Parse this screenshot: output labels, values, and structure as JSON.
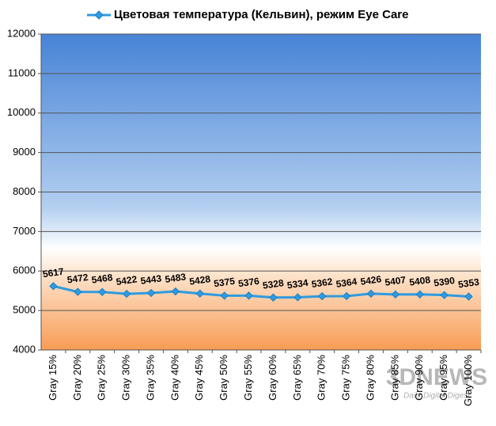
{
  "chart_data": {
    "type": "line",
    "categories": [
      "Gray 15%",
      "Gray 20%",
      "Gray 25%",
      "Gray 30%",
      "Gray 35%",
      "Gray 40%",
      "Gray 45%",
      "Gray 50%",
      "Gray 55%",
      "Gray 60%",
      "Gray 65%",
      "Gray 70%",
      "Gray 75%",
      "Gray 80%",
      "Gray 85%",
      "Gray 90%",
      "Gray 95%",
      "Gray 100%"
    ],
    "series": [
      {
        "name": "Цветовая температура (Кельвин), режим Eye Care",
        "color": "#2f9be0",
        "values": [
          5617,
          5472,
          5468,
          5422,
          5443,
          5483,
          5428,
          5375,
          5376,
          5328,
          5334,
          5362,
          5364,
          5426,
          5407,
          5408,
          5390,
          5353
        ]
      }
    ],
    "ylim": [
      4000,
      12000
    ],
    "yticks": [
      4000,
      5000,
      6000,
      7000,
      8000,
      9000,
      10000,
      11000,
      12000
    ],
    "grid": true,
    "legend": "top",
    "watermark": {
      "logo": "3DNEWS",
      "tagline": "Daily Digital Digest"
    }
  }
}
